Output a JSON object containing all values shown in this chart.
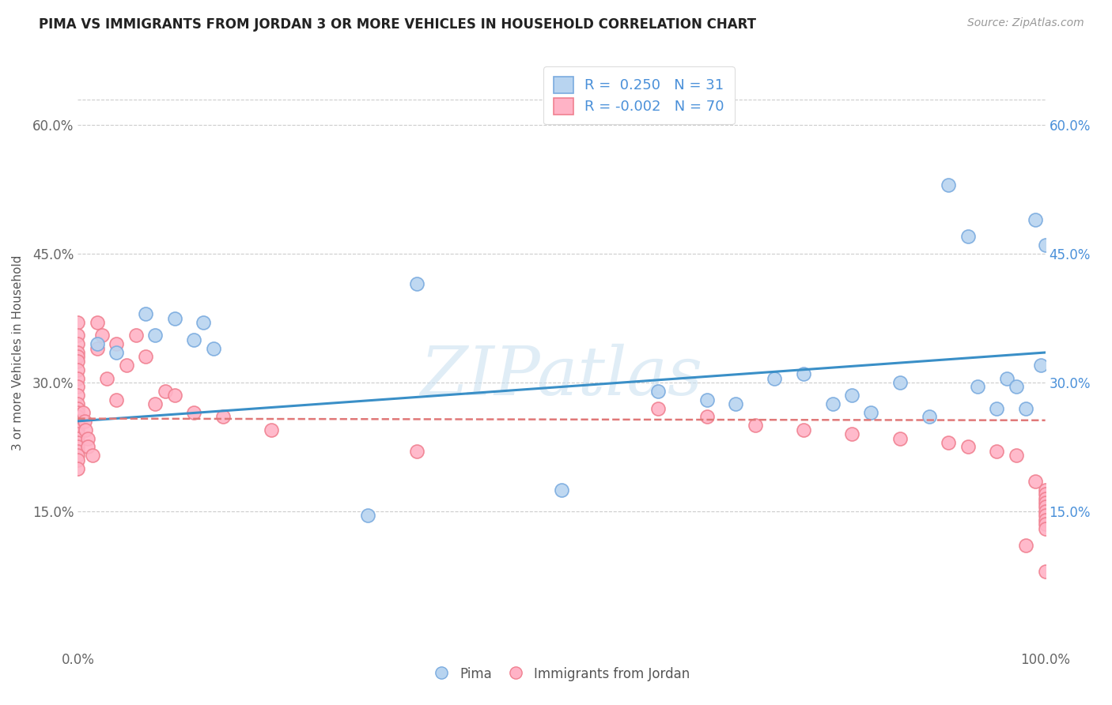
{
  "title": "PIMA VS IMMIGRANTS FROM JORDAN 3 OR MORE VEHICLES IN HOUSEHOLD CORRELATION CHART",
  "source": "Source: ZipAtlas.com",
  "ylabel": "3 or more Vehicles in Household",
  "xlim": [
    0,
    1.0
  ],
  "ylim": [
    -0.01,
    0.68
  ],
  "xticks": [
    0.0,
    0.25,
    0.5,
    0.75,
    1.0
  ],
  "xticklabels": [
    "0.0%",
    "",
    "",
    "",
    "100.0%"
  ],
  "yticks": [
    0.15,
    0.3,
    0.45,
    0.6
  ],
  "yticklabels": [
    "15.0%",
    "30.0%",
    "45.0%",
    "60.0%"
  ],
  "legend_r_blue": "0.250",
  "legend_n_blue": "31",
  "legend_r_pink": "-0.002",
  "legend_n_pink": "70",
  "blue_scatter_x": [
    0.02,
    0.04,
    0.07,
    0.08,
    0.1,
    0.12,
    0.13,
    0.14,
    0.35,
    0.6,
    0.65,
    0.72,
    0.75,
    0.8,
    0.82,
    0.85,
    0.88,
    0.9,
    0.92,
    0.93,
    0.95,
    0.96,
    0.97,
    0.98,
    0.99,
    0.995,
    1.0,
    0.78,
    0.68,
    0.5,
    0.3
  ],
  "blue_scatter_y": [
    0.345,
    0.335,
    0.38,
    0.355,
    0.375,
    0.35,
    0.37,
    0.34,
    0.415,
    0.29,
    0.28,
    0.305,
    0.31,
    0.285,
    0.265,
    0.3,
    0.26,
    0.53,
    0.47,
    0.295,
    0.27,
    0.305,
    0.295,
    0.27,
    0.49,
    0.32,
    0.46,
    0.275,
    0.275,
    0.175,
    0.145
  ],
  "pink_scatter_x": [
    0.0,
    0.0,
    0.0,
    0.0,
    0.0,
    0.0,
    0.0,
    0.0,
    0.0,
    0.0,
    0.0,
    0.0,
    0.0,
    0.0,
    0.0,
    0.0,
    0.0,
    0.0,
    0.0,
    0.0,
    0.0,
    0.0,
    0.0,
    0.0,
    0.0,
    0.005,
    0.007,
    0.008,
    0.01,
    0.01,
    0.015,
    0.02,
    0.02,
    0.025,
    0.03,
    0.04,
    0.04,
    0.05,
    0.06,
    0.07,
    0.08,
    0.09,
    0.1,
    0.12,
    0.15,
    0.2,
    0.35,
    0.6,
    0.65,
    0.7,
    0.75,
    0.8,
    0.85,
    0.9,
    0.92,
    0.95,
    0.97,
    0.98,
    0.99,
    1.0,
    1.0,
    1.0,
    1.0,
    1.0,
    1.0,
    1.0,
    1.0,
    1.0,
    1.0,
    1.0
  ],
  "pink_scatter_y": [
    0.37,
    0.355,
    0.345,
    0.335,
    0.33,
    0.325,
    0.315,
    0.305,
    0.295,
    0.285,
    0.275,
    0.27,
    0.265,
    0.26,
    0.255,
    0.25,
    0.245,
    0.24,
    0.235,
    0.23,
    0.225,
    0.22,
    0.215,
    0.21,
    0.2,
    0.265,
    0.255,
    0.245,
    0.235,
    0.225,
    0.215,
    0.37,
    0.34,
    0.355,
    0.305,
    0.345,
    0.28,
    0.32,
    0.355,
    0.33,
    0.275,
    0.29,
    0.285,
    0.265,
    0.26,
    0.245,
    0.22,
    0.27,
    0.26,
    0.25,
    0.245,
    0.24,
    0.235,
    0.23,
    0.225,
    0.22,
    0.215,
    0.11,
    0.185,
    0.175,
    0.17,
    0.165,
    0.16,
    0.155,
    0.15,
    0.145,
    0.14,
    0.135,
    0.13,
    0.08
  ],
  "blue_trend_x": [
    0.0,
    1.0
  ],
  "blue_trend_y": [
    0.255,
    0.335
  ],
  "pink_trend_x": [
    0.0,
    1.0
  ],
  "pink_trend_y": [
    0.258,
    0.256
  ],
  "watermark": "ZIPatlas",
  "background_color": "#ffffff",
  "grid_color": "#cccccc"
}
